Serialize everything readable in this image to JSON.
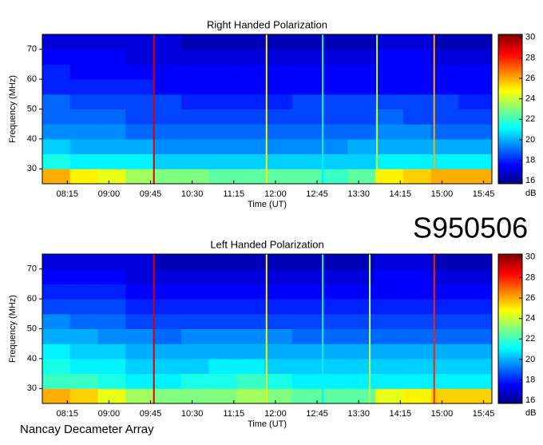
{
  "chart_data": [
    {
      "type": "heatmap",
      "title": "Right Handed Polarization",
      "x_label": "Time (UT)",
      "y_label": "Frequency (MHz)",
      "colormap": "jet",
      "xlim": [
        7.8,
        15.9
      ],
      "ylim": [
        25,
        75
      ],
      "xticks": [
        {
          "value": 8.25,
          "label": "08:15"
        },
        {
          "value": 9,
          "label": "09:00"
        },
        {
          "value": 9.75,
          "label": "09:45"
        },
        {
          "value": 10.5,
          "label": "10:30"
        },
        {
          "value": 11.25,
          "label": "11:15"
        },
        {
          "value": 12,
          "label": "12:00"
        },
        {
          "value": 12.75,
          "label": "12:45"
        },
        {
          "value": 13.5,
          "label": "13:30"
        },
        {
          "value": 14.25,
          "label": "14:15"
        },
        {
          "value": 15,
          "label": "15:00"
        },
        {
          "value": 15.75,
          "label": "15:45"
        }
      ],
      "yticks": [
        30,
        40,
        50,
        60,
        70
      ],
      "x_bins": [
        7.8,
        8.3,
        8.8,
        9.3,
        9.8,
        10.3,
        10.8,
        11.3,
        11.8,
        12.3,
        12.8,
        13.3,
        13.8,
        14.3,
        14.8,
        15.3,
        15.9
      ],
      "y_bins": [
        25,
        30,
        35,
        40,
        45,
        50,
        55,
        60,
        65,
        70,
        75
      ],
      "z": [
        [
          26,
          25,
          24.5,
          23.5,
          23,
          23,
          22.5,
          22.5,
          22.5,
          22.5,
          22,
          22.5,
          25,
          25.5,
          26,
          26
        ],
        [
          21.5,
          21,
          21,
          21,
          20.5,
          20.5,
          20.5,
          20.5,
          20.5,
          20.5,
          20.5,
          20.5,
          21,
          21,
          21,
          21
        ],
        [
          20.5,
          20,
          20,
          20,
          19.5,
          19.5,
          19.5,
          19.5,
          19.5,
          19.5,
          19.5,
          20,
          20,
          20,
          20,
          20
        ],
        [
          19.5,
          19.5,
          19.5,
          19,
          19,
          19,
          19,
          19,
          19,
          19,
          19,
          19,
          19.5,
          19.5,
          19,
          19
        ],
        [
          19,
          19,
          19,
          18.5,
          18.5,
          18.5,
          18.5,
          18.5,
          18.5,
          18.5,
          18.5,
          18.5,
          19,
          18.5,
          18.5,
          18.5
        ],
        [
          19,
          18.5,
          18.5,
          18.5,
          18.5,
          18,
          18,
          18,
          18,
          18.5,
          18.5,
          18.5,
          18.5,
          18.5,
          18.5,
          18
        ],
        [
          18,
          18,
          18,
          18,
          17.5,
          17.5,
          17.5,
          17.5,
          17.5,
          17.5,
          17.5,
          17.5,
          17.5,
          17.5,
          17.5,
          17.5
        ],
        [
          18,
          17.5,
          17.5,
          17.5,
          17.5,
          17.5,
          17.5,
          17.5,
          17.5,
          17.5,
          17.5,
          17.5,
          17.5,
          17.5,
          17.5,
          17.5
        ],
        [
          17.5,
          17.5,
          17.5,
          17,
          17,
          17,
          17,
          17,
          17,
          17,
          17,
          17,
          17.5,
          17.5,
          17,
          17
        ],
        [
          17,
          17,
          17,
          17,
          17,
          16.5,
          16.5,
          16.5,
          16.5,
          16.5,
          16.5,
          16.5,
          17,
          17,
          16.5,
          16.5
        ]
      ],
      "lines": {
        "x": [
          9.81,
          11.84,
          12.85,
          13.83,
          14.86
        ],
        "values": [
          29,
          25,
          21,
          24,
          26
        ]
      },
      "colorbar": {
        "label": "dB",
        "clim": [
          15.7,
          30.3
        ],
        "ticks": [
          16,
          18,
          20,
          22,
          24,
          26,
          28,
          30
        ]
      }
    },
    {
      "type": "heatmap",
      "title": "Left Handed Polarization",
      "x_label": "Time (UT)",
      "y_label": "Frequency (MHz)",
      "colormap": "jet",
      "xlim": [
        7.8,
        15.9
      ],
      "ylim": [
        25,
        75
      ],
      "xticks": [
        {
          "value": 8.25,
          "label": "08:15"
        },
        {
          "value": 9,
          "label": "09:00"
        },
        {
          "value": 9.75,
          "label": "09:45"
        },
        {
          "value": 10.5,
          "label": "10:30"
        },
        {
          "value": 11.25,
          "label": "11:15"
        },
        {
          "value": 12,
          "label": "12:00"
        },
        {
          "value": 12.75,
          "label": "12:45"
        },
        {
          "value": 13.5,
          "label": "13:30"
        },
        {
          "value": 14.25,
          "label": "14:15"
        },
        {
          "value": 15,
          "label": "15:00"
        },
        {
          "value": 15.75,
          "label": "15:45"
        }
      ],
      "yticks": [
        30,
        40,
        50,
        60,
        70
      ],
      "x_bins": [
        7.8,
        8.3,
        8.8,
        9.3,
        9.8,
        10.3,
        10.8,
        11.3,
        11.8,
        12.3,
        12.8,
        13.3,
        13.8,
        14.3,
        14.8,
        15.3,
        15.9
      ],
      "y_bins": [
        25,
        30,
        35,
        40,
        45,
        50,
        55,
        60,
        65,
        70,
        75
      ],
      "z": [
        [
          26,
          25.5,
          24.5,
          23.5,
          23,
          23,
          23,
          23.5,
          23,
          22.5,
          22.5,
          22.5,
          24.5,
          25,
          25.5,
          25.5
        ],
        [
          22,
          22,
          21.5,
          21,
          21,
          21.5,
          21.5,
          22,
          21.5,
          21,
          21,
          21,
          21,
          21,
          21,
          21
        ],
        [
          21.5,
          21,
          21,
          20.5,
          20.5,
          20.5,
          21,
          21,
          20.5,
          20.5,
          20.5,
          20.5,
          20.5,
          20.5,
          20.5,
          20.5
        ],
        [
          21,
          20.5,
          20.5,
          20,
          20,
          20,
          20,
          20,
          20,
          20,
          20,
          20,
          20,
          20,
          20,
          20
        ],
        [
          20,
          20,
          19.5,
          19.5,
          19,
          19.5,
          19.5,
          19.5,
          19.5,
          19,
          19,
          19,
          19,
          19,
          19,
          19
        ],
        [
          19.5,
          19,
          19,
          18.5,
          18.5,
          18.5,
          18.5,
          18.5,
          18.5,
          18.5,
          18.5,
          18.5,
          18.5,
          18.5,
          18.5,
          18.5
        ],
        [
          18.5,
          18.5,
          18.5,
          18,
          18,
          18,
          18,
          18,
          18,
          18,
          18,
          18,
          18,
          18,
          18,
          18
        ],
        [
          18,
          18,
          18,
          17.5,
          17.5,
          17.5,
          17.5,
          17.5,
          17.5,
          17.5,
          17.5,
          17.5,
          17.5,
          17.5,
          17.5,
          17.5
        ],
        [
          17.5,
          17.5,
          17.5,
          17,
          17,
          17,
          17,
          17,
          17,
          17,
          17,
          17,
          17.5,
          17.5,
          17,
          17
        ],
        [
          17,
          17,
          17,
          17,
          16.5,
          16.5,
          16.5,
          16.5,
          16.5,
          16.5,
          16.5,
          16.5,
          17,
          17,
          16.5,
          16.5
        ]
      ],
      "lines": {
        "x": [
          9.81,
          11.84,
          12.85,
          13.7,
          14.86
        ],
        "values": [
          29,
          25,
          21,
          24,
          28
        ]
      },
      "colorbar": {
        "label": "dB",
        "clim": [
          15.7,
          30.3
        ],
        "ticks": [
          16,
          18,
          20,
          22,
          24,
          26,
          28,
          30
        ]
      }
    }
  ],
  "observation_id": "S950506",
  "footer": "Nancay Decameter Array"
}
